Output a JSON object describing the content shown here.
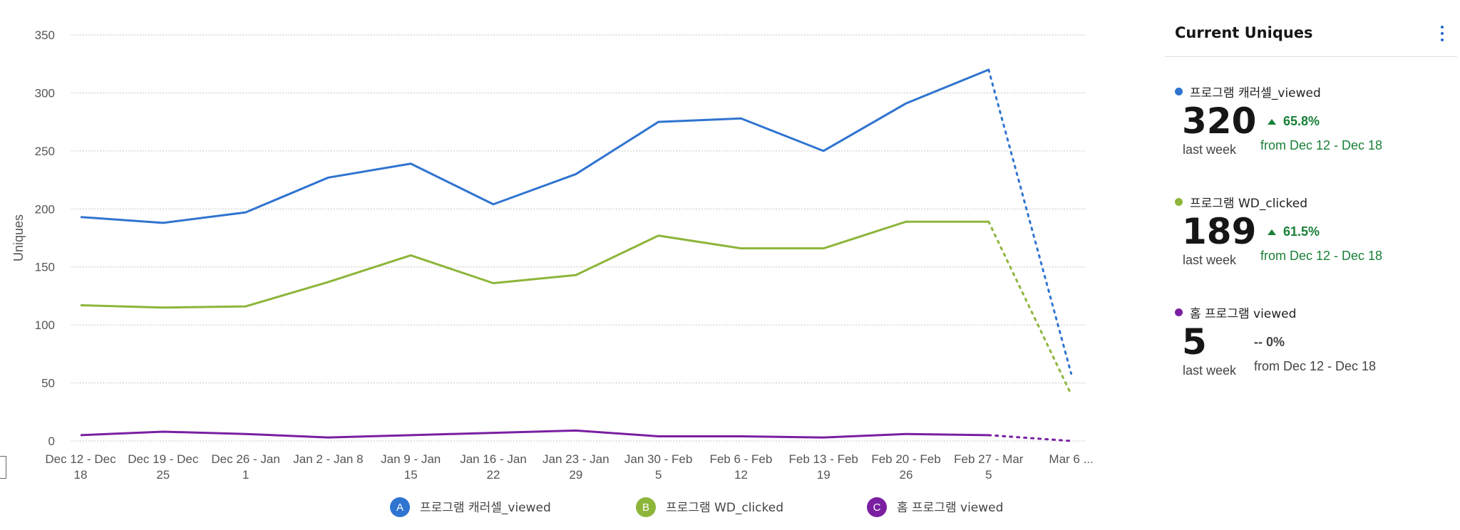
{
  "chart_data": {
    "type": "line",
    "ylabel": "Uniques",
    "xlabel": "",
    "ylim": [
      0,
      350
    ],
    "y_ticks": [
      0,
      50,
      100,
      150,
      200,
      250,
      300,
      350
    ],
    "grid": "horizontal dotted",
    "legend_position": "bottom",
    "categories": [
      [
        "Dec 12 - Dec",
        "18"
      ],
      [
        "Dec 19 - Dec",
        "25"
      ],
      [
        "Dec 26 - Jan",
        "1"
      ],
      [
        "Jan 2 - Jan 8",
        ""
      ],
      [
        "Jan 9 - Jan",
        "15"
      ],
      [
        "Jan 16 - Jan",
        "22"
      ],
      [
        "Jan 23 - Jan",
        "29"
      ],
      [
        "Jan 30 - Feb",
        "5"
      ],
      [
        "Feb 6 - Feb",
        "12"
      ],
      [
        "Feb 13 - Feb",
        "19"
      ],
      [
        "Feb 20 - Feb",
        "26"
      ],
      [
        "Feb 27 - Mar",
        "5"
      ],
      [
        "Mar 6 ...",
        ""
      ]
    ],
    "incomplete_from_index": 11,
    "series": [
      {
        "letter": "A",
        "name": "프로그램 캐러셀_viewed",
        "color": "#2f74d0",
        "values": [
          193,
          188,
          197,
          227,
          239,
          204,
          230,
          275,
          278,
          250,
          291,
          320,
          58
        ]
      },
      {
        "letter": "B",
        "name": "프로그램 WD_clicked",
        "color": "#8db53a",
        "values": [
          117,
          115,
          116,
          137,
          160,
          136,
          143,
          177,
          166,
          166,
          189,
          189,
          40
        ]
      },
      {
        "letter": "C",
        "name": "홈 프로그램 viewed",
        "color": "#7a1fa2",
        "values": [
          5,
          8,
          6,
          3,
          5,
          7,
          9,
          4,
          4,
          3,
          6,
          5,
          0
        ]
      }
    ]
  },
  "panel": {
    "title": "Current Uniques",
    "metrics": [
      {
        "name": "프로그램 캐러셀_viewed",
        "color": "#2f74d0",
        "value": "320",
        "period": "last week",
        "change": "65.8%",
        "direction": "up",
        "from": "from Dec 12 - Dec 18"
      },
      {
        "name": "프로그램 WD_clicked",
        "color": "#8db53a",
        "value": "189",
        "period": "last week",
        "change": "61.5%",
        "direction": "up",
        "from": "from Dec 12 - Dec 18"
      },
      {
        "name": "홈 프로그램 viewed",
        "color": "#7a1fa2",
        "value": "5",
        "period": "last week",
        "change": "-- 0%",
        "direction": "flat",
        "from": "from Dec 12 - Dec 18"
      }
    ]
  }
}
